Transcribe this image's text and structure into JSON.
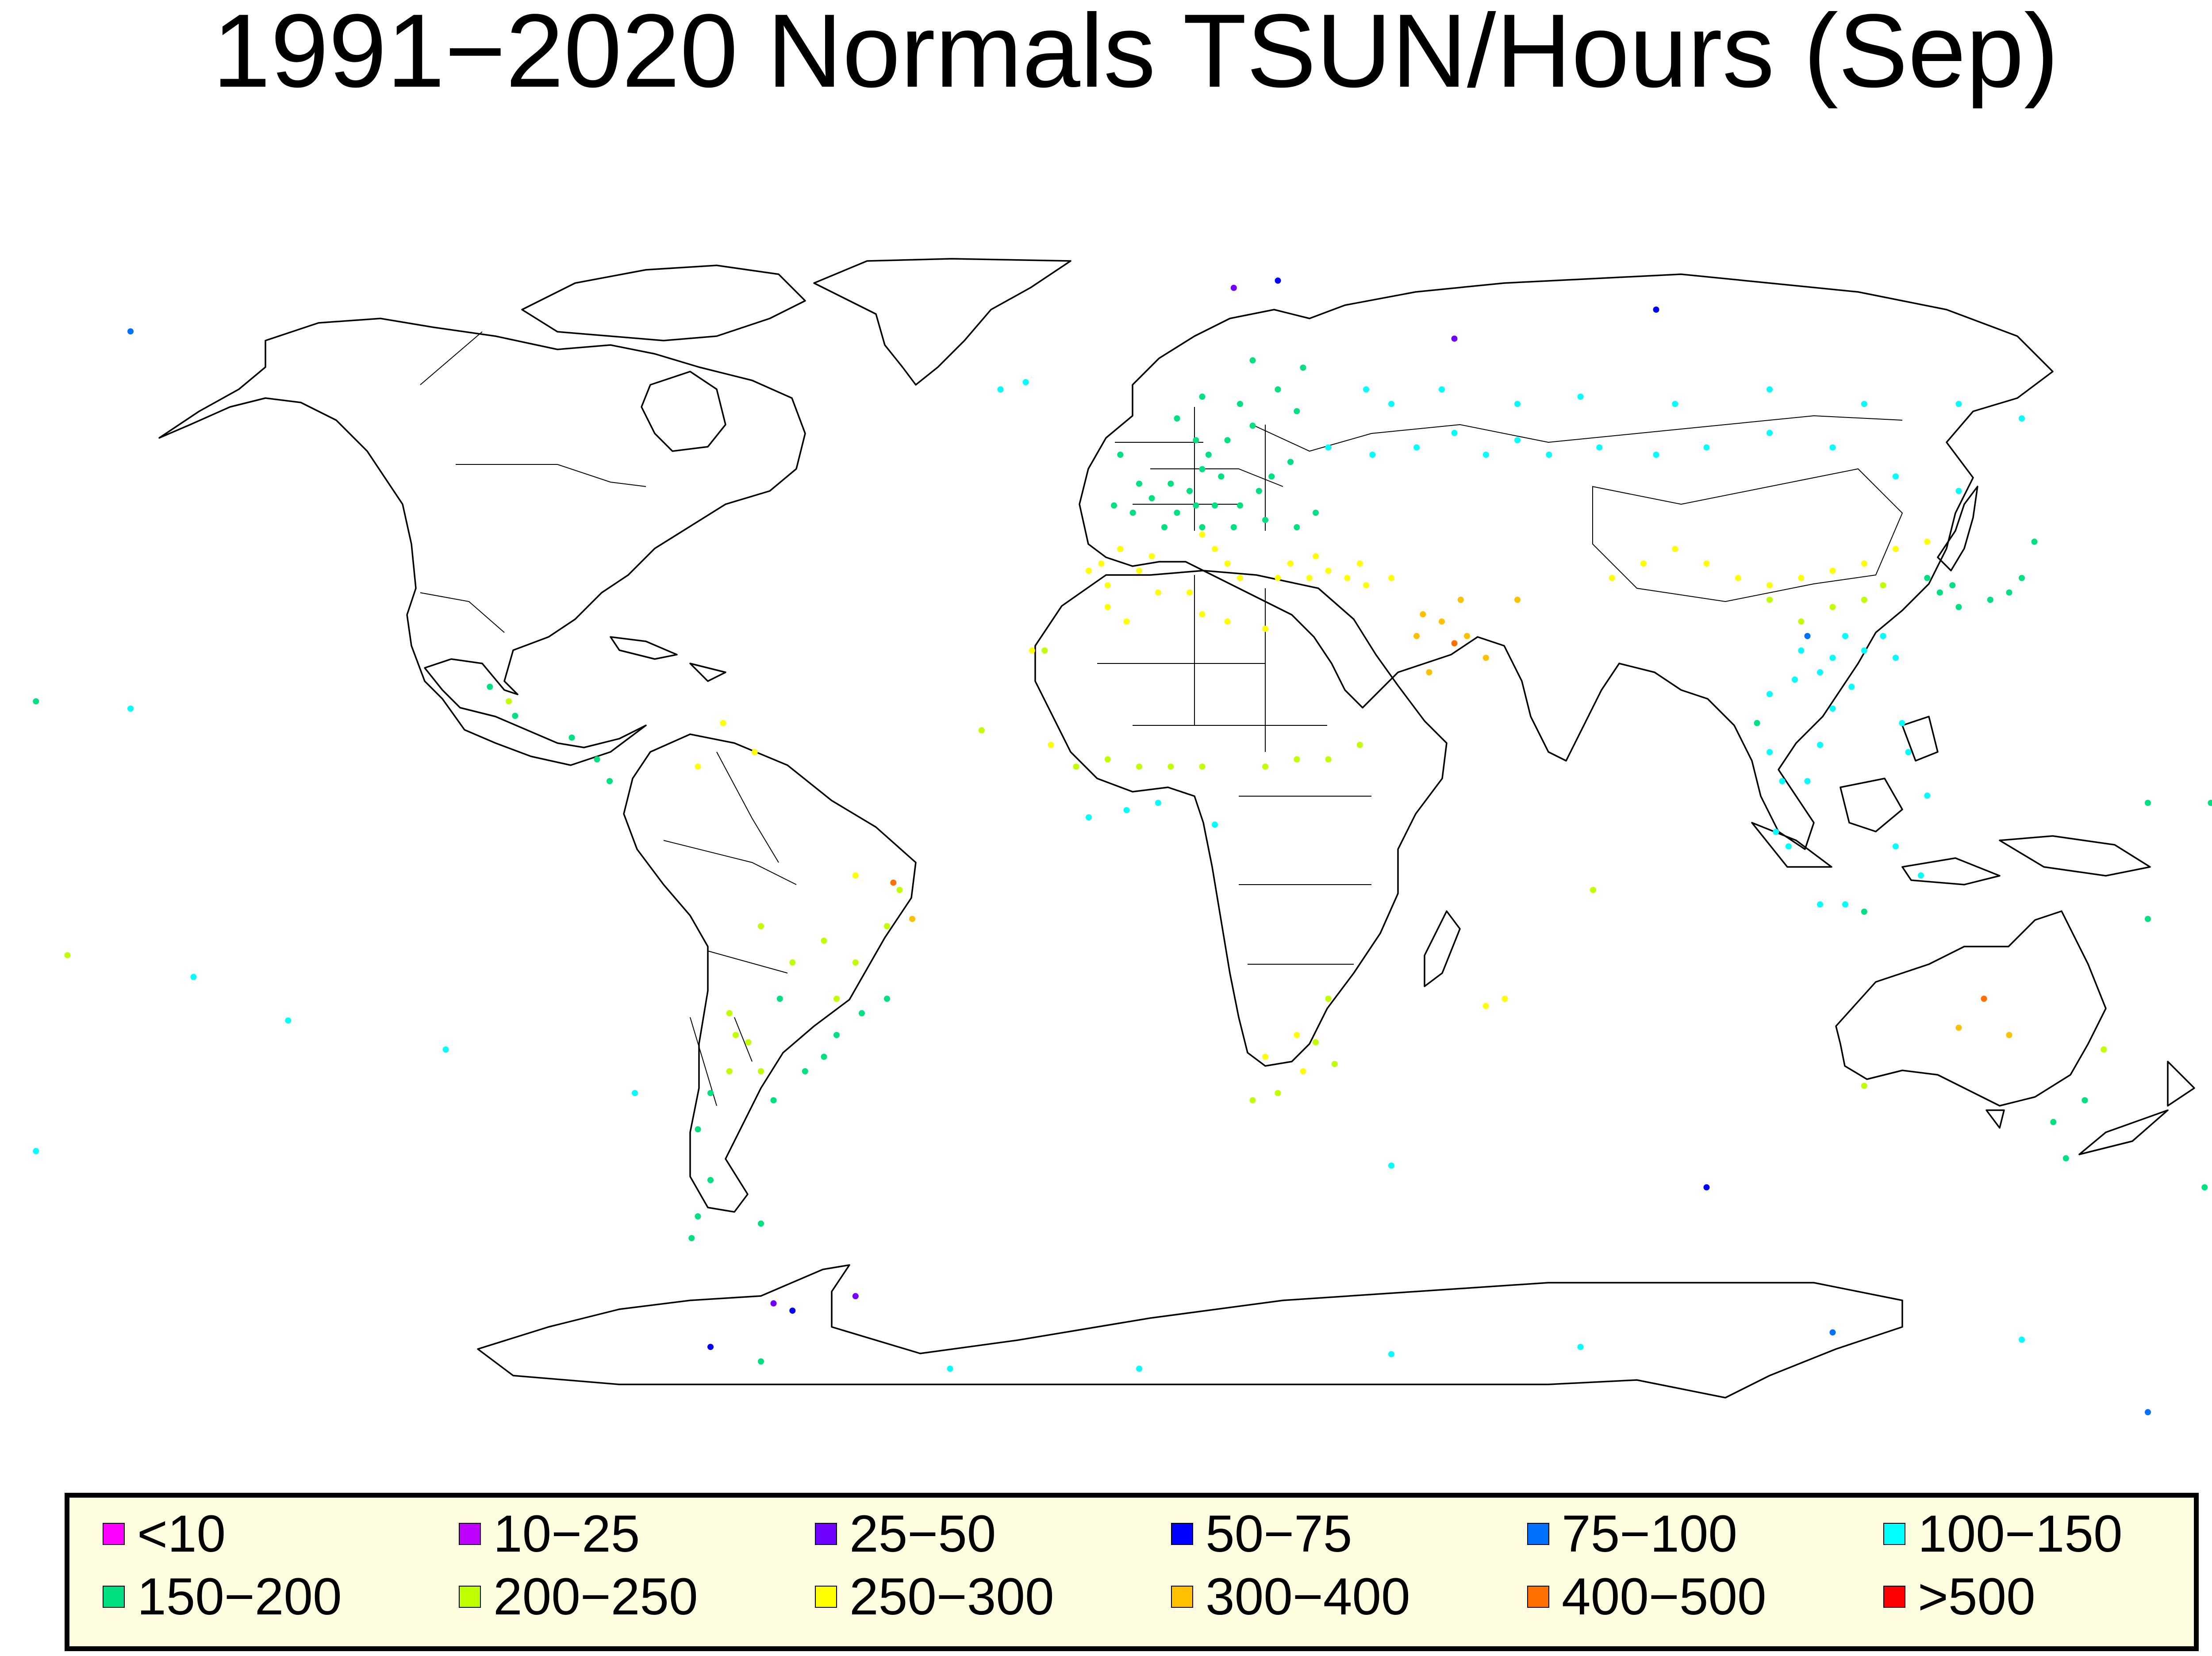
{
  "title": "1991−2020 Normals TSUN/Hours (Sep)",
  "legend": [
    {
      "label": "<10",
      "color": "#ff00ff"
    },
    {
      "label": "10−25",
      "color": "#c000ff"
    },
    {
      "label": "25−50",
      "color": "#7000ff"
    },
    {
      "label": "50−75",
      "color": "#0000ff"
    },
    {
      "label": "75−100",
      "color": "#0070ff"
    },
    {
      "label": "100−150",
      "color": "#00ffff"
    },
    {
      "label": "150−200",
      "color": "#00e080"
    },
    {
      "label": "200−250",
      "color": "#c0ff00"
    },
    {
      "label": "250−300",
      "color": "#ffff00"
    },
    {
      "label": "300−400",
      "color": "#ffc000"
    },
    {
      "label": "400−500",
      "color": "#ff7000"
    },
    {
      "label": ">500",
      "color": "#ff0000"
    }
  ],
  "stations": [
    [
      -3,
      55,
      6
    ],
    [
      0,
      51,
      6
    ],
    [
      2,
      49,
      6
    ],
    [
      5,
      51,
      6
    ],
    [
      8,
      50,
      6
    ],
    [
      10,
      53,
      6
    ],
    [
      13,
      52,
      6
    ],
    [
      6,
      47,
      6
    ],
    [
      9,
      48,
      6
    ],
    [
      12,
      48,
      6
    ],
    [
      16,
      48,
      6
    ],
    [
      19,
      50,
      6
    ],
    [
      21,
      52,
      6
    ],
    [
      24,
      54,
      6
    ],
    [
      15,
      45,
      6
    ],
    [
      20,
      46,
      6
    ],
    [
      25,
      45,
      6
    ],
    [
      28,
      47,
      6
    ],
    [
      10,
      45,
      6
    ],
    [
      4,
      45,
      6
    ],
    [
      -1,
      47,
      6
    ],
    [
      -4,
      48,
      6
    ],
    [
      11,
      55,
      6
    ],
    [
      9,
      57,
      6
    ],
    [
      14,
      57,
      6
    ],
    [
      18,
      59,
      6
    ],
    [
      16,
      62,
      6
    ],
    [
      6,
      60,
      6
    ],
    [
      10,
      63,
      6
    ],
    [
      25,
      61,
      6
    ],
    [
      22,
      64,
      6
    ],
    [
      26,
      67,
      6
    ],
    [
      18,
      68,
      6
    ],
    [
      -6,
      40,
      8
    ],
    [
      -3,
      42,
      8
    ],
    [
      0,
      39,
      8
    ],
    [
      -5,
      37,
      8
    ],
    [
      2,
      41,
      8
    ],
    [
      -8,
      39,
      8
    ],
    [
      12,
      42,
      8
    ],
    [
      14,
      40,
      8
    ],
    [
      16,
      38,
      8
    ],
    [
      10,
      44,
      8
    ],
    [
      22,
      38,
      8
    ],
    [
      24,
      40,
      8
    ],
    [
      27,
      38,
      8
    ],
    [
      30,
      39,
      8
    ],
    [
      33,
      38,
      8
    ],
    [
      36,
      37,
      8
    ],
    [
      40,
      38,
      8
    ],
    [
      28,
      41,
      8
    ],
    [
      35,
      40,
      8
    ],
    [
      -5,
      34,
      8
    ],
    [
      -2,
      32,
      8
    ],
    [
      3,
      36,
      8
    ],
    [
      8,
      36,
      8
    ],
    [
      10,
      33,
      8
    ],
    [
      14,
      32,
      8
    ],
    [
      20,
      31,
      8
    ],
    [
      45,
      33,
      9
    ],
    [
      48,
      32,
      9
    ],
    [
      51,
      35,
      9
    ],
    [
      52,
      30,
      9
    ],
    [
      55,
      27,
      9
    ],
    [
      46,
      25,
      9
    ],
    [
      50,
      29,
      10
    ],
    [
      44,
      30,
      9
    ],
    [
      60,
      35,
      9
    ],
    [
      30,
      56,
      5
    ],
    [
      37,
      55,
      5
    ],
    [
      44,
      56,
      5
    ],
    [
      50,
      58,
      5
    ],
    [
      55,
      55,
      5
    ],
    [
      60,
      57,
      5
    ],
    [
      65,
      55,
      5
    ],
    [
      73,
      56,
      5
    ],
    [
      82,
      55,
      5
    ],
    [
      90,
      56,
      5
    ],
    [
      100,
      58,
      5
    ],
    [
      110,
      56,
      5
    ],
    [
      120,
      52,
      5
    ],
    [
      130,
      50,
      5
    ],
    [
      40,
      62,
      5
    ],
    [
      48,
      64,
      5
    ],
    [
      60,
      62,
      5
    ],
    [
      70,
      63,
      5
    ],
    [
      85,
      62,
      5
    ],
    [
      100,
      64,
      5
    ],
    [
      115,
      62,
      5
    ],
    [
      130,
      62,
      5
    ],
    [
      140,
      60,
      5
    ],
    [
      36,
      64,
      5
    ],
    [
      90,
      40,
      8
    ],
    [
      95,
      38,
      8
    ],
    [
      100,
      37,
      8
    ],
    [
      105,
      38,
      8
    ],
    [
      110,
      39,
      8
    ],
    [
      115,
      40,
      8
    ],
    [
      120,
      42,
      8
    ],
    [
      125,
      43,
      8
    ],
    [
      105,
      32,
      7
    ],
    [
      110,
      34,
      7
    ],
    [
      115,
      35,
      7
    ],
    [
      118,
      37,
      7
    ],
    [
      100,
      35,
      7
    ],
    [
      85,
      42,
      8
    ],
    [
      80,
      40,
      8
    ],
    [
      75,
      38,
      8
    ],
    [
      105,
      28,
      5
    ],
    [
      108,
      25,
      5
    ],
    [
      110,
      27,
      5
    ],
    [
      112,
      30,
      5
    ],
    [
      115,
      28,
      5
    ],
    [
      118,
      30,
      5
    ],
    [
      120,
      27,
      5
    ],
    [
      113,
      23,
      5
    ],
    [
      104,
      24,
      5
    ],
    [
      100,
      22,
      5
    ],
    [
      106,
      30,
      4
    ],
    [
      125,
      38,
      6
    ],
    [
      127,
      36,
      6
    ],
    [
      129,
      37,
      6
    ],
    [
      130,
      34,
      6
    ],
    [
      135,
      35,
      6
    ],
    [
      138,
      36,
      6
    ],
    [
      140,
      38,
      6
    ],
    [
      142,
      43,
      6
    ],
    [
      -103,
      23,
      6
    ],
    [
      -99,
      19,
      6
    ],
    [
      -90,
      16,
      6
    ],
    [
      -86,
      13,
      6
    ],
    [
      -84,
      10,
      6
    ],
    [
      -100,
      21,
      7
    ],
    [
      -66,
      18,
      8
    ],
    [
      -70,
      12,
      8
    ],
    [
      -61,
      14,
      8
    ],
    [
      -38,
      -5,
      7
    ],
    [
      -40,
      -10,
      7
    ],
    [
      -45,
      -3,
      8
    ],
    [
      -50,
      -12,
      7
    ],
    [
      -45,
      -15,
      7
    ],
    [
      -48,
      -20,
      7
    ],
    [
      -55,
      -15,
      7
    ],
    [
      -60,
      -10,
      7
    ],
    [
      -40,
      -20,
      6
    ],
    [
      -44,
      -22,
      6
    ],
    [
      -48,
      -25,
      6
    ],
    [
      -50,
      -28,
      6
    ],
    [
      -53,
      -30,
      6
    ],
    [
      -58,
      -34,
      6
    ],
    [
      -60,
      -30,
      7
    ],
    [
      -62,
      -26,
      7
    ],
    [
      -65,
      -30,
      7
    ],
    [
      -68,
      -33,
      6
    ],
    [
      -70,
      -38,
      6
    ],
    [
      -68,
      -45,
      6
    ],
    [
      -70,
      -50,
      6
    ],
    [
      -71,
      -53,
      6
    ],
    [
      -64,
      -25,
      7
    ],
    [
      -65,
      -22,
      7
    ],
    [
      -57,
      -20,
      6
    ],
    [
      -36,
      -9,
      9
    ],
    [
      -39,
      -4,
      10
    ],
    [
      -10,
      12,
      7
    ],
    [
      -5,
      13,
      7
    ],
    [
      0,
      12,
      7
    ],
    [
      5,
      12,
      7
    ],
    [
      10,
      12,
      7
    ],
    [
      20,
      12,
      7
    ],
    [
      25,
      13,
      7
    ],
    [
      30,
      13,
      7
    ],
    [
      35,
      15,
      7
    ],
    [
      -14,
      15,
      8
    ],
    [
      -2,
      6,
      5
    ],
    [
      3,
      7,
      5
    ],
    [
      -8,
      5,
      5
    ],
    [
      12,
      4,
      5
    ],
    [
      18,
      -34,
      7
    ],
    [
      22,
      -33,
      7
    ],
    [
      26,
      -30,
      8
    ],
    [
      28,
      -26,
      7
    ],
    [
      31,
      -29,
      7
    ],
    [
      25,
      -25,
      8
    ],
    [
      20,
      -28,
      8
    ],
    [
      30,
      -20,
      7
    ],
    [
      153,
      -27,
      7
    ],
    [
      145,
      -37,
      6
    ],
    [
      150,
      -34,
      6
    ],
    [
      147,
      -42,
      6
    ],
    [
      130,
      -24,
      9
    ],
    [
      134,
      -20,
      10
    ],
    [
      138,
      -25,
      9
    ],
    [
      115,
      -32,
      7
    ],
    [
      174,
      -38,
      6
    ],
    [
      172,
      -43,
      6
    ],
    [
      169,
      -46,
      6
    ],
    [
      100,
      14,
      5
    ],
    [
      102,
      10,
      5
    ],
    [
      106,
      10,
      5
    ],
    [
      108,
      15,
      5
    ],
    [
      110,
      20,
      5
    ],
    [
      98,
      18,
      6
    ],
    [
      101,
      3,
      5
    ],
    [
      103,
      1,
      5
    ],
    [
      108,
      -7,
      5
    ],
    [
      112,
      -7,
      5
    ],
    [
      115,
      -8,
      6
    ],
    [
      120,
      1,
      5
    ],
    [
      124,
      -3,
      5
    ],
    [
      125,
      8,
      5
    ],
    [
      122,
      14,
      5
    ],
    [
      121,
      18,
      5
    ],
    [
      -17,
      28,
      8
    ],
    [
      -15,
      28,
      7
    ],
    [
      -25,
      17,
      7
    ],
    [
      -60,
      -51,
      6
    ],
    [
      -58,
      -62,
      2
    ],
    [
      -55,
      -63,
      3
    ],
    [
      -45,
      -61,
      2
    ],
    [
      -80,
      -33,
      5
    ],
    [
      -150,
      -17,
      5
    ],
    [
      -170,
      -14,
      7
    ],
    [
      -175,
      -41,
      5
    ],
    [
      -135,
      -23,
      5
    ],
    [
      -110,
      -27,
      5
    ],
    [
      -60,
      -70,
      6
    ],
    [
      -30,
      -71,
      5
    ],
    [
      0,
      -71,
      5
    ],
    [
      40,
      -69,
      5
    ],
    [
      70,
      -68,
      5
    ],
    [
      110,
      -66,
      4
    ],
    [
      140,
      -67,
      5
    ],
    [
      160,
      -77,
      4
    ],
    [
      -68,
      -68,
      3
    ],
    [
      -175,
      21,
      6
    ],
    [
      -160,
      20,
      5
    ],
    [
      160,
      7,
      6
    ],
    [
      170,
      7,
      6
    ],
    [
      160,
      -9,
      6
    ],
    [
      175,
      -18,
      6
    ],
    [
      -22,
      64,
      5
    ],
    [
      -18,
      65,
      5
    ],
    [
      15,
      78,
      2
    ],
    [
      22,
      79,
      3
    ],
    [
      50,
      71,
      2
    ],
    [
      82,
      75,
      3
    ],
    [
      -160,
      72,
      4
    ],
    [
      58,
      -20,
      8
    ],
    [
      55,
      -21,
      8
    ],
    [
      72,
      -5,
      7
    ],
    [
      40,
      -43,
      5
    ],
    [
      90,
      -46,
      3
    ]
  ]
}
